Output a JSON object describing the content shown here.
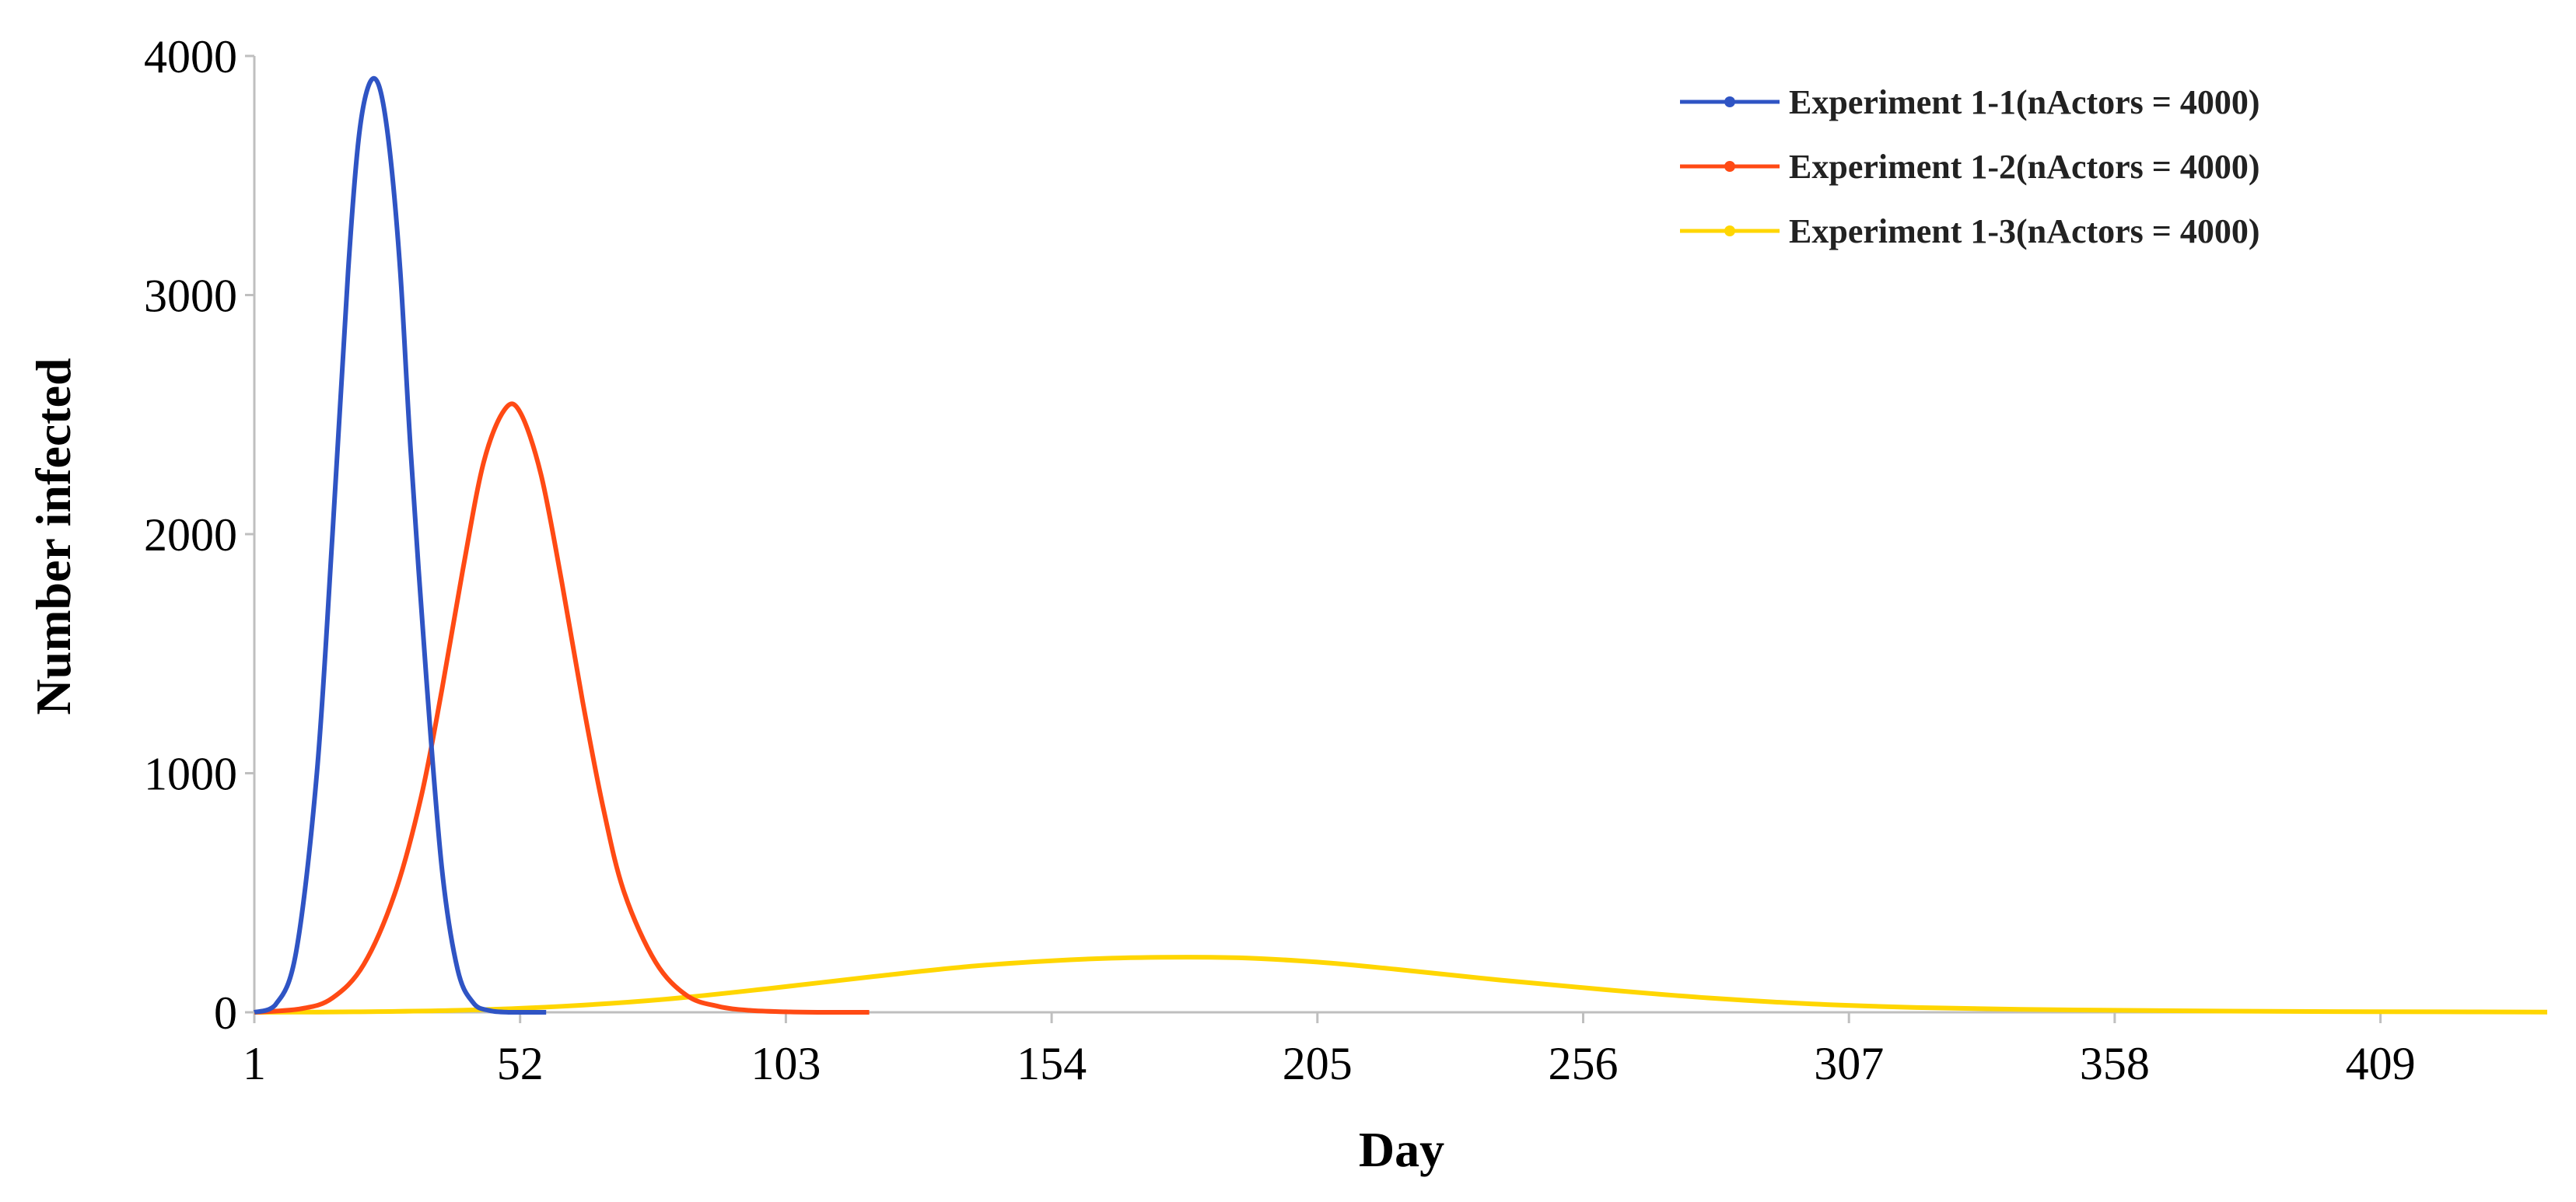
{
  "chart_data": {
    "type": "line",
    "title": "",
    "xlabel": "Day",
    "ylabel": "Number infected",
    "xlim": [
      1,
      441
    ],
    "ylim": [
      0,
      4000
    ],
    "x_ticks": [
      "1",
      "52",
      "103",
      "154",
      "205",
      "256",
      "307",
      "358",
      "409"
    ],
    "y_ticks": [
      "0",
      "1000",
      "2000",
      "3000",
      "4000"
    ],
    "grid": false,
    "legend_position": "top-right",
    "series": [
      {
        "name": "Experiment 1-1(nActors = 4000)",
        "color": "#2f54c4",
        "x": [
          1,
          5,
          9,
          13,
          16,
          19,
          21,
          23,
          25,
          27,
          29,
          31,
          34,
          37,
          40,
          43,
          46,
          50,
          57
        ],
        "y": [
          0,
          30,
          250,
          1000,
          2000,
          3100,
          3650,
          3880,
          3870,
          3600,
          3100,
          2350,
          1400,
          600,
          180,
          40,
          8,
          0,
          0
        ]
      },
      {
        "name": "Experiment 1-2(nActors = 4000)",
        "color": "#ff4a14",
        "x": [
          1,
          10,
          16,
          22,
          28,
          33,
          37,
          41,
          45,
          49,
          52,
          56,
          60,
          64,
          68,
          72,
          78,
          84,
          90,
          96,
          103,
          110,
          119
        ],
        "y": [
          0,
          15,
          60,
          200,
          500,
          900,
          1350,
          1850,
          2300,
          2520,
          2510,
          2250,
          1800,
          1300,
          850,
          500,
          210,
          70,
          25,
          8,
          2,
          0,
          0
        ]
      },
      {
        "name": "Experiment 1-3(nActors = 4000)",
        "color": "#ffd600",
        "x": [
          1,
          20,
          40,
          60,
          80,
          100,
          120,
          140,
          160,
          175,
          190,
          205,
          220,
          240,
          260,
          280,
          300,
          320,
          340,
          360,
          380,
          400,
          420,
          441
        ],
        "y": [
          0,
          2,
          8,
          25,
          55,
          100,
          150,
          195,
          222,
          230,
          228,
          210,
          180,
          135,
          95,
          60,
          35,
          20,
          12,
          8,
          5,
          3,
          2,
          1
        ]
      }
    ]
  }
}
